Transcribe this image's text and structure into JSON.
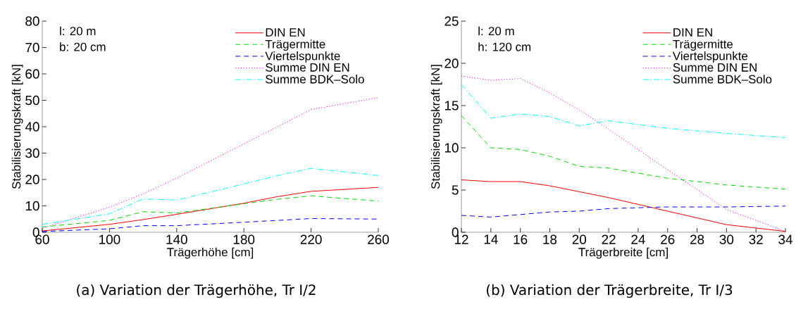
{
  "chart_data": [
    {
      "type": "line",
      "xlabel": "Trägerhöhe [cm]",
      "ylabel": "Stabilisierungskraft [kN]",
      "legend": "top right",
      "grid": false,
      "annotations": [
        "l:  20 m",
        "b: 20 cm",
        "(a) Variation der Trägerhöhe, Tr I/2"
      ],
      "x": [
        60,
        100,
        120,
        140,
        180,
        200,
        220,
        260
      ],
      "xlim": [
        60,
        260
      ],
      "xticks": [
        60,
        100,
        140,
        180,
        220,
        260
      ],
      "ylim": [
        0,
        80
      ],
      "yticks": [
        0,
        10,
        20,
        30,
        40,
        50,
        60,
        70,
        80
      ],
      "series": [
        {
          "name": "DIN EN",
          "color": "#ff0000",
          "line_style": "solid",
          "values": [
            0.5,
            3,
            4.8,
            6.8,
            11,
            13.5,
            15.5,
            17
          ]
        },
        {
          "name": "Trägermitte",
          "color": "#00dd00",
          "line_style": "dashed",
          "values": [
            2,
            4.5,
            7.8,
            7.3,
            10.8,
            12.5,
            13.8,
            11.8
          ]
        },
        {
          "name": "Viertelspunkte",
          "color": "#0000ff",
          "line_style": "dashed",
          "values": [
            0.3,
            1.3,
            2.5,
            2.5,
            3.8,
            4.5,
            5.2,
            5
          ]
        },
        {
          "name": "Summe DIN EN",
          "color": "#ff00ff",
          "line_style": "dotted",
          "values": [
            1.5,
            9.5,
            14.5,
            20.5,
            33.5,
            40,
            46.5,
            51
          ]
        },
        {
          "name": "Summe BDK–Solo",
          "color": "#00ffff",
          "line_style": "dashdot",
          "values": [
            3,
            7,
            12.6,
            12.2,
            18.3,
            21.5,
            24.2,
            21.5
          ]
        }
      ]
    },
    {
      "type": "line",
      "xlabel": "Trägerbreite [cm]",
      "ylabel": "Stabilisierungskraft [kN]",
      "legend": "top right",
      "grid": false,
      "annotations": [
        "l:  20 m",
        "h: 120 cm",
        "(b) Variation der Trägerbreite, Tr I/3"
      ],
      "x": [
        12,
        14,
        16,
        18,
        20,
        22,
        26,
        30,
        34
      ],
      "xlim": [
        12,
        34
      ],
      "xticks": [
        12,
        14,
        16,
        18,
        20,
        22,
        24,
        26,
        28,
        30,
        32,
        34
      ],
      "ylim": [
        0,
        25
      ],
      "yticks": [
        0,
        5,
        10,
        15,
        20,
        25
      ],
      "series": [
        {
          "name": "DIN EN",
          "color": "#ff0000",
          "line_style": "solid",
          "values": [
            6.2,
            6.0,
            6.0,
            5.5,
            4.8,
            4.1,
            2.5,
            0.9,
            0.1
          ]
        },
        {
          "name": "Trägermitte",
          "color": "#00dd00",
          "line_style": "dashed",
          "values": [
            13.8,
            10,
            9.8,
            9.0,
            7.8,
            7.6,
            6.4,
            5.6,
            5.1
          ]
        },
        {
          "name": "Viertelspunkte",
          "color": "#0000ff",
          "line_style": "dashed",
          "values": [
            2.0,
            1.8,
            2.1,
            2.4,
            2.5,
            2.8,
            3.0,
            3.0,
            3.1
          ]
        },
        {
          "name": "Summe DIN EN",
          "color": "#ff00ff",
          "line_style": "dotted",
          "values": [
            18.5,
            18.0,
            18.2,
            16.5,
            14.5,
            12.2,
            7.4,
            2.7,
            0.1
          ]
        },
        {
          "name": "Summe BDK–Solo",
          "color": "#00ffff",
          "line_style": "dashdot",
          "values": [
            17.5,
            13.5,
            14.0,
            13.7,
            12.6,
            13.2,
            12.3,
            11.7,
            11.2
          ]
        }
      ]
    }
  ]
}
